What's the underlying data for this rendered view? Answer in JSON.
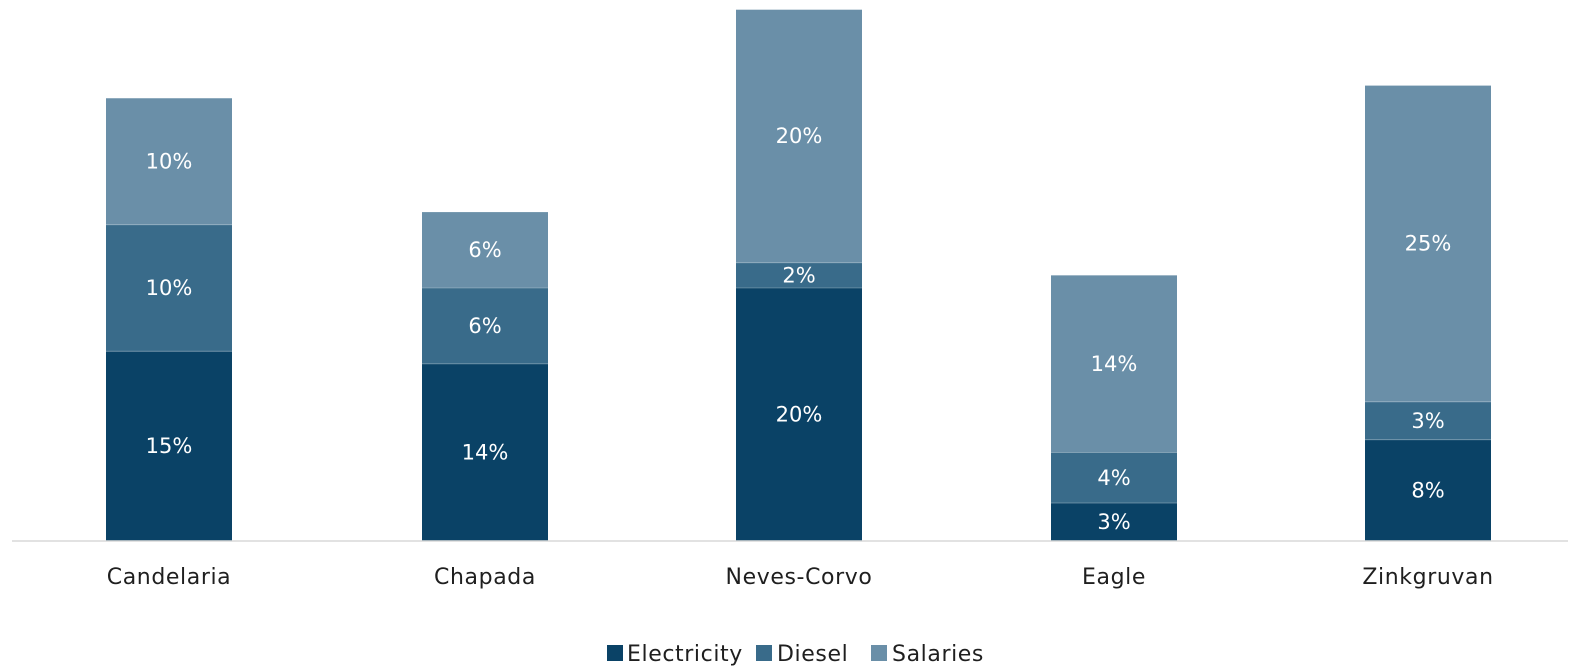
{
  "chart_data": {
    "type": "bar",
    "stacked": true,
    "categories": [
      "Candelaria",
      "Chapada",
      "Neves-Corvo",
      "Eagle",
      "Zinkgruvan"
    ],
    "series": [
      {
        "name": "Electricity",
        "color": "#0a4266",
        "values": [
          15,
          14,
          20,
          3,
          8
        ],
        "labels": [
          "15%",
          "14%",
          "20%",
          "3%",
          "8%"
        ]
      },
      {
        "name": "Diesel",
        "color": "#396b8a",
        "values": [
          10,
          6,
          2,
          4,
          3
        ],
        "labels": [
          "10%",
          "6%",
          "2%",
          "4%",
          "3%"
        ]
      },
      {
        "name": "Salaries",
        "color": "#6a8fa8",
        "values": [
          10,
          6,
          20,
          14,
          25
        ],
        "labels": [
          "10%",
          "6%",
          "20%",
          "14%",
          "25%"
        ]
      }
    ],
    "ylim": [
      0,
      42
    ],
    "grid": false,
    "legend": "bottom-center"
  }
}
